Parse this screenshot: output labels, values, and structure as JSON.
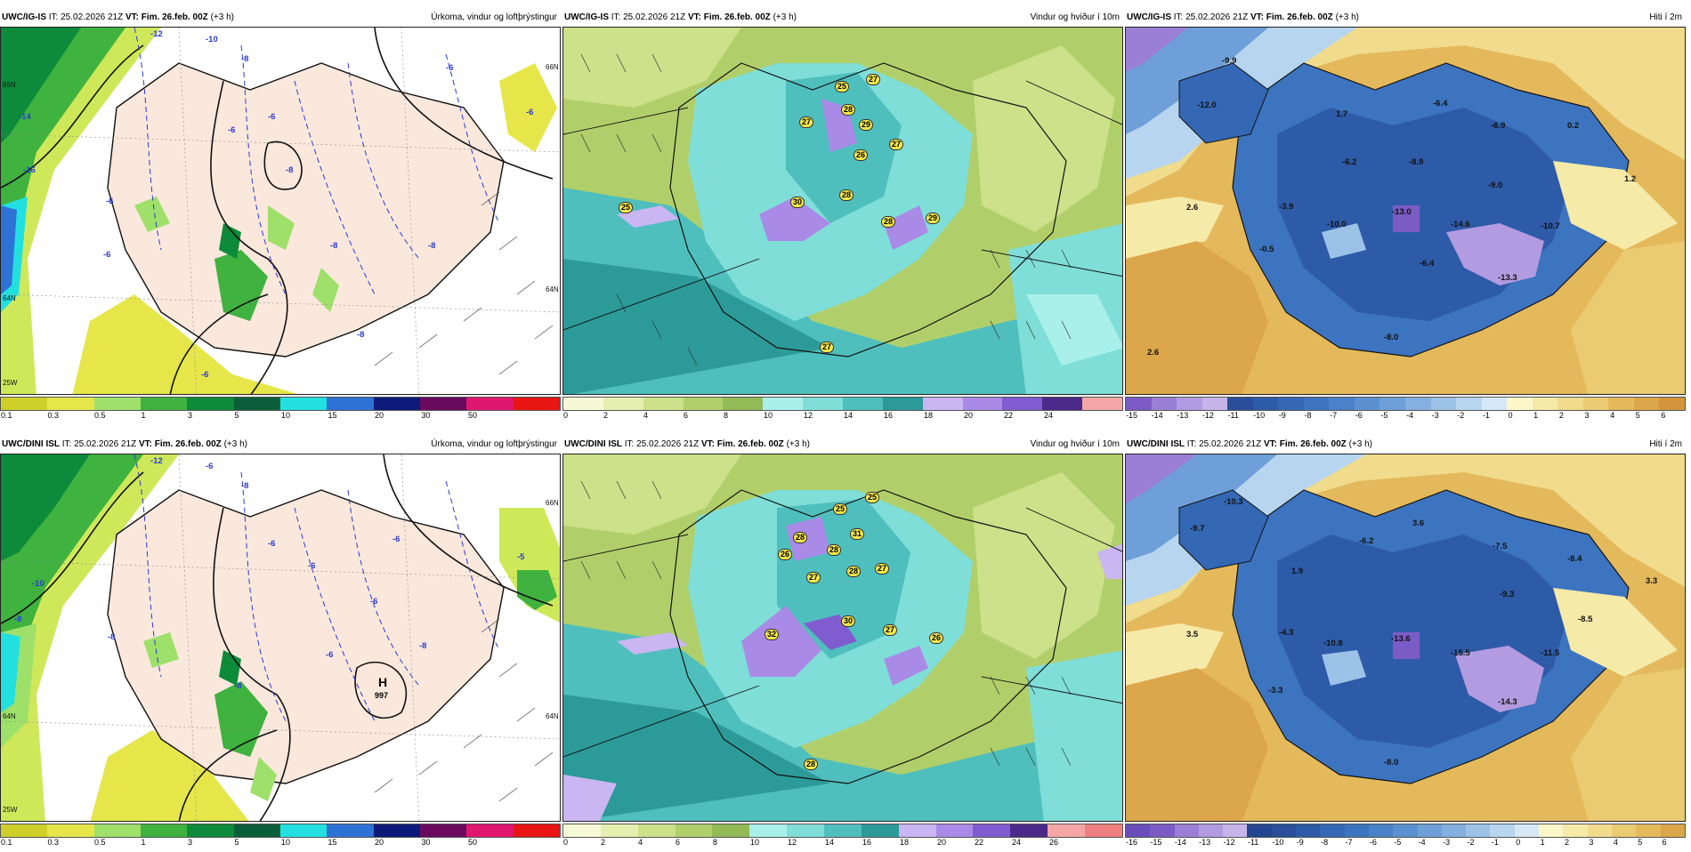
{
  "panels": [
    {
      "model": "UWC/IG-IS",
      "it": "IT: 25.02.2026 21Z",
      "vt_label": "VT: Fim. 26.feb. 00Z",
      "lead": "(+3 h)",
      "field": "Úrkoma, vindur og loftþrýstingur"
    },
    {
      "model": "UWC/IG-IS",
      "it": "IT: 25.02.2026 21Z",
      "vt_label": "VT: Fim. 26.feb. 00Z",
      "lead": "(+3 h)",
      "field": "Vindur og hviður í 10m"
    },
    {
      "model": "UWC/IG-IS",
      "it": "IT: 25.02.2026 21Z",
      "vt_label": "VT: Fim. 26.feb. 00Z",
      "lead": "(+3 h)",
      "field": "Hiti í 2m"
    },
    {
      "model": "UWC/DINI ISL",
      "it": "IT: 25.02.2026 21Z",
      "vt_label": "VT: Fim. 26.feb. 00Z",
      "lead": "(+3 h)",
      "field": "Úrkoma, vindur og loftþrýstingur"
    },
    {
      "model": "UWC/DINI ISL",
      "it": "IT: 25.02.2026 21Z",
      "vt_label": "VT: Fim. 26.feb. 00Z",
      "lead": "(+3 h)",
      "field": "Vindur og hviður í 10m"
    },
    {
      "model": "UWC/DINI ISL",
      "it": "IT: 25.02.2026 21Z",
      "vt_label": "VT: Fim. 26.feb. 00Z",
      "lead": "(+3 h)",
      "field": "Hiti í 2m"
    }
  ],
  "scales": {
    "precip": {
      "ticks": [
        "0.1",
        "0.3",
        "0.5",
        "1",
        "3",
        "5",
        "10",
        "15",
        "20",
        "30",
        "50"
      ],
      "colors": [
        "#cfcf2a",
        "#e6e64a",
        "#9ee06a",
        "#3fb23f",
        "#0d8a3a",
        "#0b5e3a",
        "#22e0e0",
        "#2e72d6",
        "#0e1a7a",
        "#6a0a5e",
        "#e0176e",
        "#e81515"
      ]
    },
    "wind_top": {
      "ticks": [
        "0",
        "2",
        "4",
        "6",
        "8",
        "10",
        "12",
        "14",
        "16",
        "18",
        "20",
        "22",
        "24"
      ],
      "colors": [
        "#f6f9d6",
        "#e4efb0",
        "#cde08a",
        "#b0cf6a",
        "#92bb58",
        "#a9f0ea",
        "#7fded8",
        "#4fbfbd",
        "#2c9a98",
        "#c9b6f2",
        "#a98ae6",
        "#7f5ccf",
        "#4b2a8a",
        "#f4a6a6"
      ]
    },
    "wind_bot": {
      "ticks": [
        "0",
        "2",
        "4",
        "6",
        "8",
        "10",
        "12",
        "14",
        "16",
        "18",
        "20",
        "22",
        "24",
        "26"
      ],
      "colors": [
        "#f6f9d6",
        "#e4efb0",
        "#cde08a",
        "#b0cf6a",
        "#92bb58",
        "#a9f0ea",
        "#7fded8",
        "#4fbfbd",
        "#2c9a98",
        "#c9b6f2",
        "#a98ae6",
        "#7f5ccf",
        "#4b2a8a",
        "#f4a6a6",
        "#f07f7f"
      ]
    },
    "temp_top": {
      "ticks": [
        "-15",
        "-14",
        "-13",
        "-12",
        "-11",
        "-10",
        "-9",
        "-8",
        "-7",
        "-6",
        "-5",
        "-4",
        "-3",
        "-2",
        "-1",
        "0",
        "1",
        "2",
        "3",
        "4",
        "5",
        "6"
      ],
      "colors": [
        "#7b5cc6",
        "#9b7fd6",
        "#b29be0",
        "#c7b5ea",
        "#2a4e9a",
        "#2e5ba8",
        "#3467b4",
        "#3d74bf",
        "#4a82c8",
        "#5b90d0",
        "#6e9fd8",
        "#84b0e0",
        "#9cc2e8",
        "#b7d5ef",
        "#d6e8f5",
        "#fbf7c8",
        "#f6eaa8",
        "#f0dc8c",
        "#eacb72",
        "#e4b95c",
        "#dca64a",
        "#d4943c"
      ]
    },
    "temp_bot": {
      "ticks": [
        "-16",
        "-15",
        "-14",
        "-13",
        "-12",
        "-11",
        "-10",
        "-9",
        "-8",
        "-7",
        "-6",
        "-5",
        "-4",
        "-3",
        "-2",
        "-1",
        "0",
        "1",
        "2",
        "3",
        "4",
        "5",
        "6"
      ],
      "colors": [
        "#6a4cba",
        "#7b5cc6",
        "#9b7fd6",
        "#b29be0",
        "#c7b5ea",
        "#244690",
        "#2a4e9a",
        "#2e5ba8",
        "#3467b4",
        "#3d74bf",
        "#4a82c8",
        "#5b90d0",
        "#6e9fd8",
        "#84b0e0",
        "#9cc2e8",
        "#b7d5ef",
        "#d6e8f5",
        "#fbf7c8",
        "#f6eaa8",
        "#f0dc8c",
        "#eacb72",
        "#e4b95c",
        "#dca64a"
      ]
    }
  },
  "wind_top_gusts": [
    "25",
    "27",
    "27",
    "28",
    "29",
    "26",
    "27",
    "25",
    "30",
    "28",
    "28",
    "29",
    "27"
  ],
  "wind_bot_gusts": [
    "25",
    "25",
    "28",
    "31",
    "26",
    "28",
    "28",
    "27",
    "27",
    "32",
    "30",
    "27",
    "26",
    "28"
  ],
  "temp_top_values": [
    "-9.9",
    "-12.0",
    "1.7",
    "-6.4",
    "-6.9",
    "0.2",
    "-6.2",
    "-8.9",
    "-9.0",
    "1.2",
    "2.6",
    "-3.9",
    "-10.0",
    "-13.0",
    "-14.6",
    "-10.7",
    "-0.5",
    "-6.4",
    "-13.3",
    "2.6",
    "-8.0"
  ],
  "temp_bot_values": [
    "-10.3",
    "-9.7",
    "-6.2",
    "3.6",
    "-7.5",
    "-8.4",
    "3.3",
    "1.9",
    "-9.3",
    "-8.5",
    "3.5",
    "-4.3",
    "-10.8",
    "-13.6",
    "-15.5",
    "-11.5",
    "-3.3",
    "-14.3",
    "-8.0"
  ],
  "pressure_high": {
    "letter": "H",
    "value": "997"
  },
  "precip_top_lat_labels": [
    "65N",
    "64N",
    "66N",
    "64N"
  ],
  "precip_top_lon_labels": [
    "25W"
  ],
  "precip_bot_lat_labels": [
    "66N",
    "64N",
    "64N"
  ],
  "precip_bot_lon_labels": [
    "25W"
  ],
  "precip_top_contours": [
    "-12",
    "-10",
    "-8",
    "-6",
    "-14",
    "-16",
    "-8",
    "-6",
    "-6",
    "-6",
    "-8",
    "-8",
    "-8",
    "-6",
    "-6",
    "-6"
  ],
  "precip_bot_contours": [
    "-12",
    "-6",
    "-8",
    "-6",
    "-10",
    "-8",
    "-6",
    "-6",
    "-6",
    "-6",
    "-8",
    "-8",
    "-8",
    "-5"
  ]
}
